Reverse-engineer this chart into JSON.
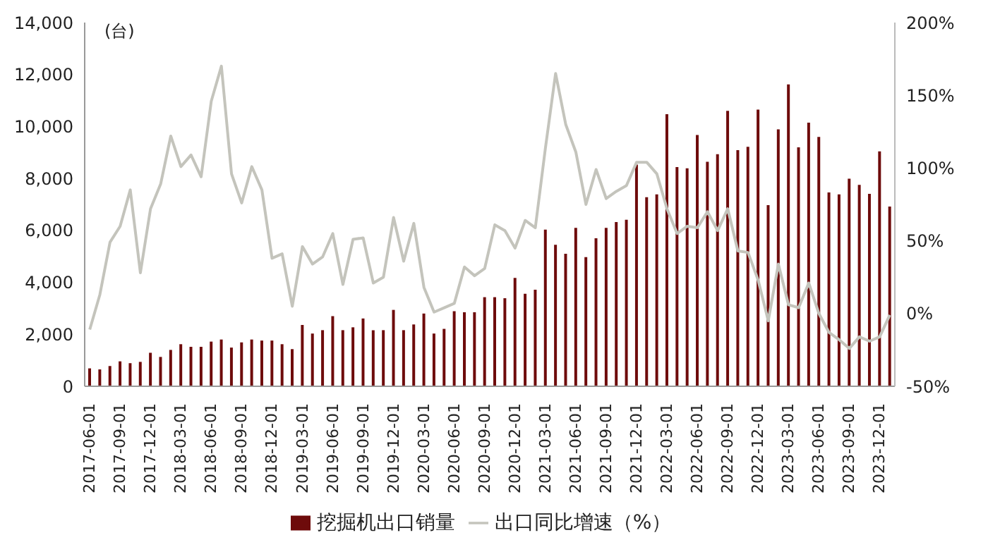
{
  "chart_data": {
    "type": "bar",
    "ylabel": "(台)",
    "categories": [
      "2017-06-01",
      null,
      null,
      "2017-09-01",
      null,
      null,
      "2017-12-01",
      null,
      null,
      "2018-03-01",
      null,
      null,
      "2018-06-01",
      null,
      null,
      "2018-09-01",
      null,
      null,
      "2018-12-01",
      null,
      null,
      "2019-03-01",
      null,
      null,
      "2019-06-01",
      null,
      null,
      "2019-09-01",
      null,
      null,
      "2019-12-01",
      null,
      null,
      "2020-03-01",
      null,
      null,
      "2020-06-01",
      null,
      null,
      "2020-09-01",
      null,
      null,
      "2020-12-01",
      null,
      null,
      "2021-03-01",
      null,
      null,
      "2021-06-01",
      null,
      null,
      "2021-09-01",
      null,
      null,
      "2021-12-01",
      null,
      null,
      "2022-03-01",
      null,
      null,
      "2022-06-01",
      null,
      null,
      "2022-09-01",
      null,
      null,
      "2022-12-01",
      null,
      null,
      "2023-03-01",
      null,
      null,
      "2023-06-01",
      null,
      null,
      "2023-09-01",
      null,
      null,
      "2023-12-01",
      null
    ],
    "series": [
      {
        "name": "挖掘机出口销量",
        "color": "#6e0b0b",
        "values": [
          690,
          650,
          780,
          960,
          890,
          940,
          1290,
          1130,
          1400,
          1620,
          1520,
          1520,
          1720,
          1800,
          1490,
          1690,
          1800,
          1760,
          1760,
          1620,
          1430,
          2360,
          2030,
          2160,
          2700,
          2160,
          2270,
          2610,
          2160,
          2160,
          2940,
          2160,
          2380,
          2800,
          2030,
          2210,
          2890,
          2850,
          2850,
          3430,
          3430,
          3390,
          4170,
          3560,
          3720,
          6030,
          5450,
          5100,
          6100,
          4970,
          5700,
          6100,
          6320,
          6410,
          8530,
          7280,
          7390,
          10470,
          8440,
          8390,
          9670,
          8640,
          8930,
          10600,
          9090,
          9220,
          10650,
          6970,
          9890,
          11620,
          9200,
          10150,
          9600,
          7460,
          7390,
          7990,
          7750,
          7410,
          9040,
          6920
        ]
      },
      {
        "name": "出口同比增速（%）",
        "type": "line",
        "axis": "y2",
        "color": "#c4c4bc",
        "values": [
          -11,
          13,
          49,
          60,
          85,
          28,
          72,
          89,
          122,
          101,
          109,
          94,
          146,
          170,
          96,
          76,
          101,
          85,
          38,
          41,
          5,
          46,
          34,
          39,
          55,
          20,
          51,
          52,
          21,
          25,
          66,
          36,
          62,
          18,
          1,
          4,
          7,
          32,
          26,
          31,
          61,
          57,
          45,
          64,
          59,
          114,
          165,
          130,
          111,
          75,
          99,
          79,
          84,
          88,
          104,
          104,
          96,
          72,
          55,
          60,
          59,
          70,
          57,
          72,
          43,
          42,
          23,
          -5,
          34,
          6,
          4,
          21,
          0,
          -13,
          -18,
          -24,
          -16,
          -19,
          -16,
          -1
        ]
      }
    ],
    "ylim": [
      0,
      14000
    ],
    "yticks": [
      0,
      {
        "value": 2000,
        "label": "2,000"
      },
      {
        "value": 4000,
        "label": "4,000"
      },
      {
        "value": 6000,
        "label": "6,000"
      },
      {
        "value": 8000,
        "label": "8,000"
      },
      {
        "value": 10000,
        "label": "10,000"
      },
      {
        "value": 12000,
        "label": "12,000"
      },
      {
        "value": 14000,
        "label": "14,000"
      }
    ],
    "y2lim": [
      -50,
      200
    ],
    "y2ticks": [
      {
        "value": -50,
        "label": "-50%"
      },
      {
        "value": 0,
        "label": "0%"
      },
      {
        "value": 50,
        "label": "50%"
      },
      {
        "value": 100,
        "label": "100%"
      },
      {
        "value": 150,
        "label": "150%"
      },
      {
        "value": 200,
        "label": "200%"
      }
    ],
    "grid": false,
    "legend": "bottom",
    "marker": "none"
  }
}
